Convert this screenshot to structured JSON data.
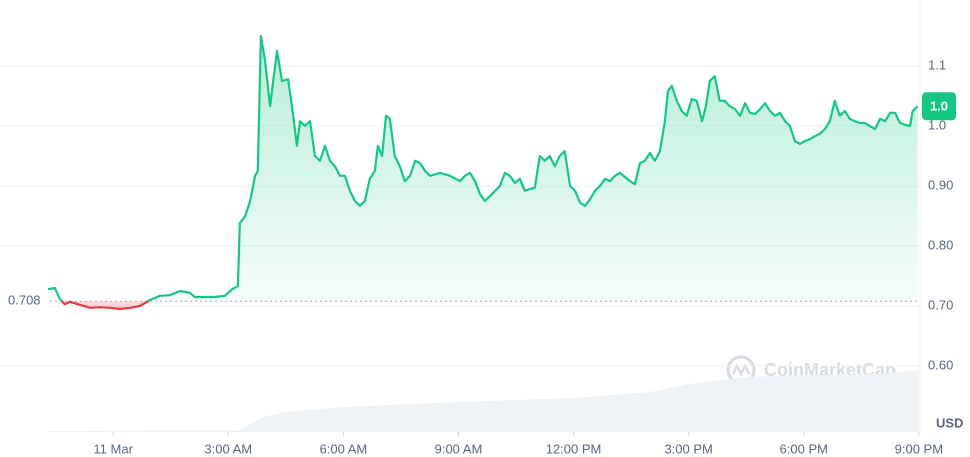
{
  "chart_data": {
    "type": "line",
    "series": [
      {
        "color": "#16c784",
        "below_color": "#ea3943",
        "x": [
          -1.7,
          -1.52,
          -1.39,
          -1.26,
          -1.13,
          -0.87,
          -0.6,
          -0.34,
          -0.08,
          0.18,
          0.44,
          0.7,
          0.96,
          1.22,
          1.48,
          1.74,
          2.0,
          2.13,
          2.39,
          2.65,
          2.91,
          3.1,
          3.25,
          3.3,
          3.44,
          3.57,
          3.7,
          3.77,
          3.85,
          3.96,
          4.09,
          4.17,
          4.27,
          4.4,
          4.56,
          4.66,
          4.79,
          4.87,
          5.0,
          5.13,
          5.26,
          5.39,
          5.52,
          5.65,
          5.78,
          5.91,
          6.04,
          6.17,
          6.3,
          6.43,
          6.56,
          6.69,
          6.82,
          6.9,
          7.01,
          7.11,
          7.21,
          7.34,
          7.47,
          7.6,
          7.74,
          7.87,
          8.0,
          8.13,
          8.26,
          8.52,
          8.78,
          9.04,
          9.17,
          9.3,
          9.43,
          9.56,
          9.69,
          9.82,
          10.08,
          10.21,
          10.34,
          10.47,
          10.6,
          10.73,
          10.86,
          10.99,
          11.12,
          11.25,
          11.38,
          11.51,
          11.64,
          11.77,
          11.91,
          12.04,
          12.17,
          12.3,
          12.43,
          12.56,
          12.69,
          12.82,
          12.95,
          13.08,
          13.21,
          13.34,
          13.47,
          13.6,
          13.73,
          13.86,
          13.99,
          14.12,
          14.25,
          14.38,
          14.46,
          14.56,
          14.69,
          14.82,
          14.95,
          15.08,
          15.21,
          15.35,
          15.45,
          15.55,
          15.68,
          15.81,
          15.94,
          16.07,
          16.21,
          16.34,
          16.47,
          16.6,
          16.73,
          16.86,
          16.99,
          17.12,
          17.25,
          17.38,
          17.51,
          17.64,
          17.77,
          17.9,
          18.03,
          18.16,
          18.29,
          18.42,
          18.55,
          18.68,
          18.81,
          18.94,
          19.07,
          19.2,
          19.33,
          19.46,
          19.59,
          19.72,
          19.86,
          19.99,
          20.12,
          20.25,
          20.38,
          20.51,
          20.64,
          20.77,
          20.84,
          20.97
        ],
        "values": [
          0.728,
          0.73,
          0.712,
          0.703,
          0.707,
          0.702,
          0.697,
          0.698,
          0.697,
          0.695,
          0.697,
          0.7,
          0.71,
          0.717,
          0.718,
          0.725,
          0.722,
          0.715,
          0.715,
          0.715,
          0.717,
          0.728,
          0.733,
          0.838,
          0.85,
          0.875,
          0.917,
          0.925,
          1.15,
          1.108,
          1.033,
          1.075,
          1.125,
          1.075,
          1.078,
          1.033,
          0.967,
          1.008,
          1.0,
          1.008,
          0.95,
          0.942,
          0.967,
          0.942,
          0.933,
          0.917,
          0.917,
          0.892,
          0.875,
          0.867,
          0.875,
          0.912,
          0.925,
          0.967,
          0.95,
          1.017,
          1.012,
          0.95,
          0.933,
          0.908,
          0.917,
          0.942,
          0.938,
          0.925,
          0.917,
          0.922,
          0.917,
          0.908,
          0.917,
          0.922,
          0.908,
          0.887,
          0.875,
          0.883,
          0.9,
          0.922,
          0.917,
          0.905,
          0.912,
          0.892,
          0.895,
          0.897,
          0.95,
          0.942,
          0.95,
          0.933,
          0.95,
          0.958,
          0.9,
          0.892,
          0.872,
          0.867,
          0.878,
          0.892,
          0.9,
          0.912,
          0.908,
          0.917,
          0.922,
          0.915,
          0.908,
          0.903,
          0.938,
          0.942,
          0.955,
          0.942,
          0.958,
          1.008,
          1.058,
          1.067,
          1.042,
          1.025,
          1.017,
          1.045,
          1.042,
          1.008,
          1.033,
          1.075,
          1.083,
          1.042,
          1.042,
          1.033,
          1.028,
          1.017,
          1.038,
          1.022,
          1.02,
          1.028,
          1.038,
          1.025,
          1.017,
          1.022,
          1.008,
          1.0,
          0.975,
          0.97,
          0.975,
          0.978,
          0.983,
          0.987,
          0.995,
          1.008,
          1.042,
          1.017,
          1.025,
          1.012,
          1.008,
          1.005,
          1.005,
          1.0,
          0.995,
          1.012,
          1.008,
          1.022,
          1.022,
          1.005,
          1.002,
          1.0,
          1.025,
          1.033
        ]
      }
    ],
    "baseline": {
      "value": 0.708,
      "label": "0.708"
    },
    "current_label": "1.0",
    "volume": {
      "color": "#eff2f5",
      "x": [
        -1.7,
        3.3,
        3.9,
        4.5,
        6.0,
        9.0,
        12.0,
        14.0,
        15.0,
        16.5,
        18.0,
        20.0,
        21.0
      ],
      "values": [
        1,
        2,
        15,
        20,
        25,
        30,
        34,
        40,
        48,
        55,
        57,
        58,
        62
      ],
      "lim": [
        0,
        100
      ]
    },
    "xlim": [
      -2.95,
      21.03
    ],
    "xticks": [
      {
        "value": 0,
        "label": "11 Mar"
      },
      {
        "value": 3,
        "label": "3:00 AM"
      },
      {
        "value": 6,
        "label": "6:00 AM"
      },
      {
        "value": 9,
        "label": "9:00 AM"
      },
      {
        "value": 12,
        "label": "12:00 PM"
      },
      {
        "value": 15,
        "label": "3:00 PM"
      },
      {
        "value": 18,
        "label": "6:00 PM"
      },
      {
        "value": 21,
        "label": "9:00 PM"
      }
    ],
    "ylim": [
      0.49,
      1.21
    ],
    "yticks": [
      1.1,
      {
        "value": 1,
        "label": "1.0"
      },
      {
        "value": 0.9,
        "label": "0.90"
      },
      {
        "value": 0.8,
        "label": "0.80"
      },
      {
        "value": 0.7,
        "label": "0.70"
      },
      {
        "value": 0.6,
        "label": "0.60"
      }
    ],
    "grid": true,
    "unit": "USD",
    "watermark": "CoinMarketCap"
  }
}
